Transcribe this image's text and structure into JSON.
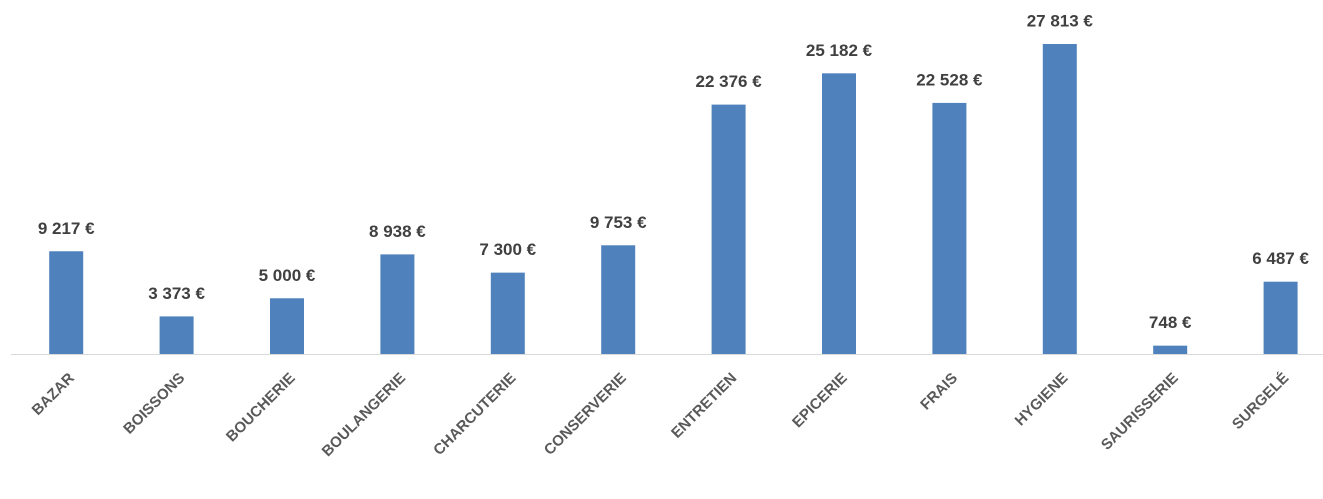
{
  "chart_data": {
    "type": "bar",
    "categories": [
      "BAZAR",
      "BOISSONS",
      "BOUCHERIE",
      "BOULANGERIE",
      "CHARCUTERIE",
      "CONSERVERIE",
      "ENTRETIEN",
      "EPICERIE",
      "FRAIS",
      "HYGIENE",
      "SAURISSERIE",
      "SURGELÉ"
    ],
    "values": [
      9217,
      3373,
      5000,
      8938,
      7300,
      9753,
      22376,
      25182,
      22528,
      27813,
      748,
      6487
    ],
    "value_labels": [
      "9 217 €",
      "3 373 €",
      "5 000 €",
      "8 938 €",
      "7 300 €",
      "9 753 €",
      "22 376 €",
      "25 182 €",
      "22 528 €",
      "27 813 €",
      "748 €",
      "6 487 €"
    ],
    "color": "#4f81bd"
  }
}
